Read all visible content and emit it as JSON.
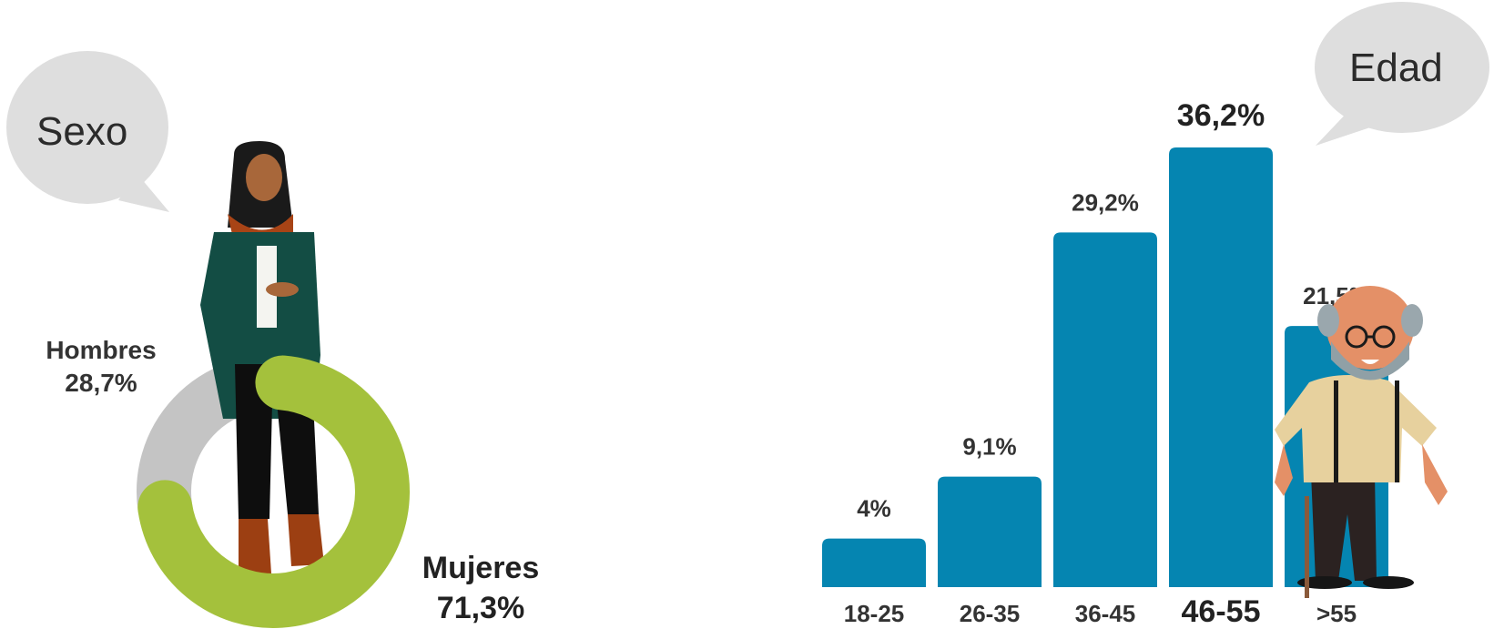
{
  "colors": {
    "bubble": "#dedede",
    "donut_female": "#a4c13c",
    "donut_male": "#c4c4c4",
    "bar": "#0585b1"
  },
  "bubbles": {
    "sexo": "Sexo",
    "edad": "Edad"
  },
  "chart_data": [
    {
      "type": "pie",
      "variant": "donut",
      "title": "Sexo",
      "labels": [
        "Hombres",
        "Mujeres"
      ],
      "values": [
        28.7,
        71.3
      ],
      "value_labels": [
        "28,7%",
        "71,3%"
      ],
      "colors": [
        "#c4c4c4",
        "#a4c13c"
      ]
    },
    {
      "type": "bar",
      "title": "Edad",
      "categories": [
        "18-25",
        "26-35",
        "36-45",
        "46-55",
        ">55"
      ],
      "values": [
        4,
        9.1,
        29.2,
        36.2,
        21.5
      ],
      "value_labels": [
        "4%",
        "9,1%",
        "29,2%",
        "36,2%",
        "21,5%"
      ],
      "highlight": "46-55",
      "color": "#0585b1"
    }
  ],
  "illustrations": {
    "woman": "woman-figure",
    "old_man": "old-man-figure"
  }
}
